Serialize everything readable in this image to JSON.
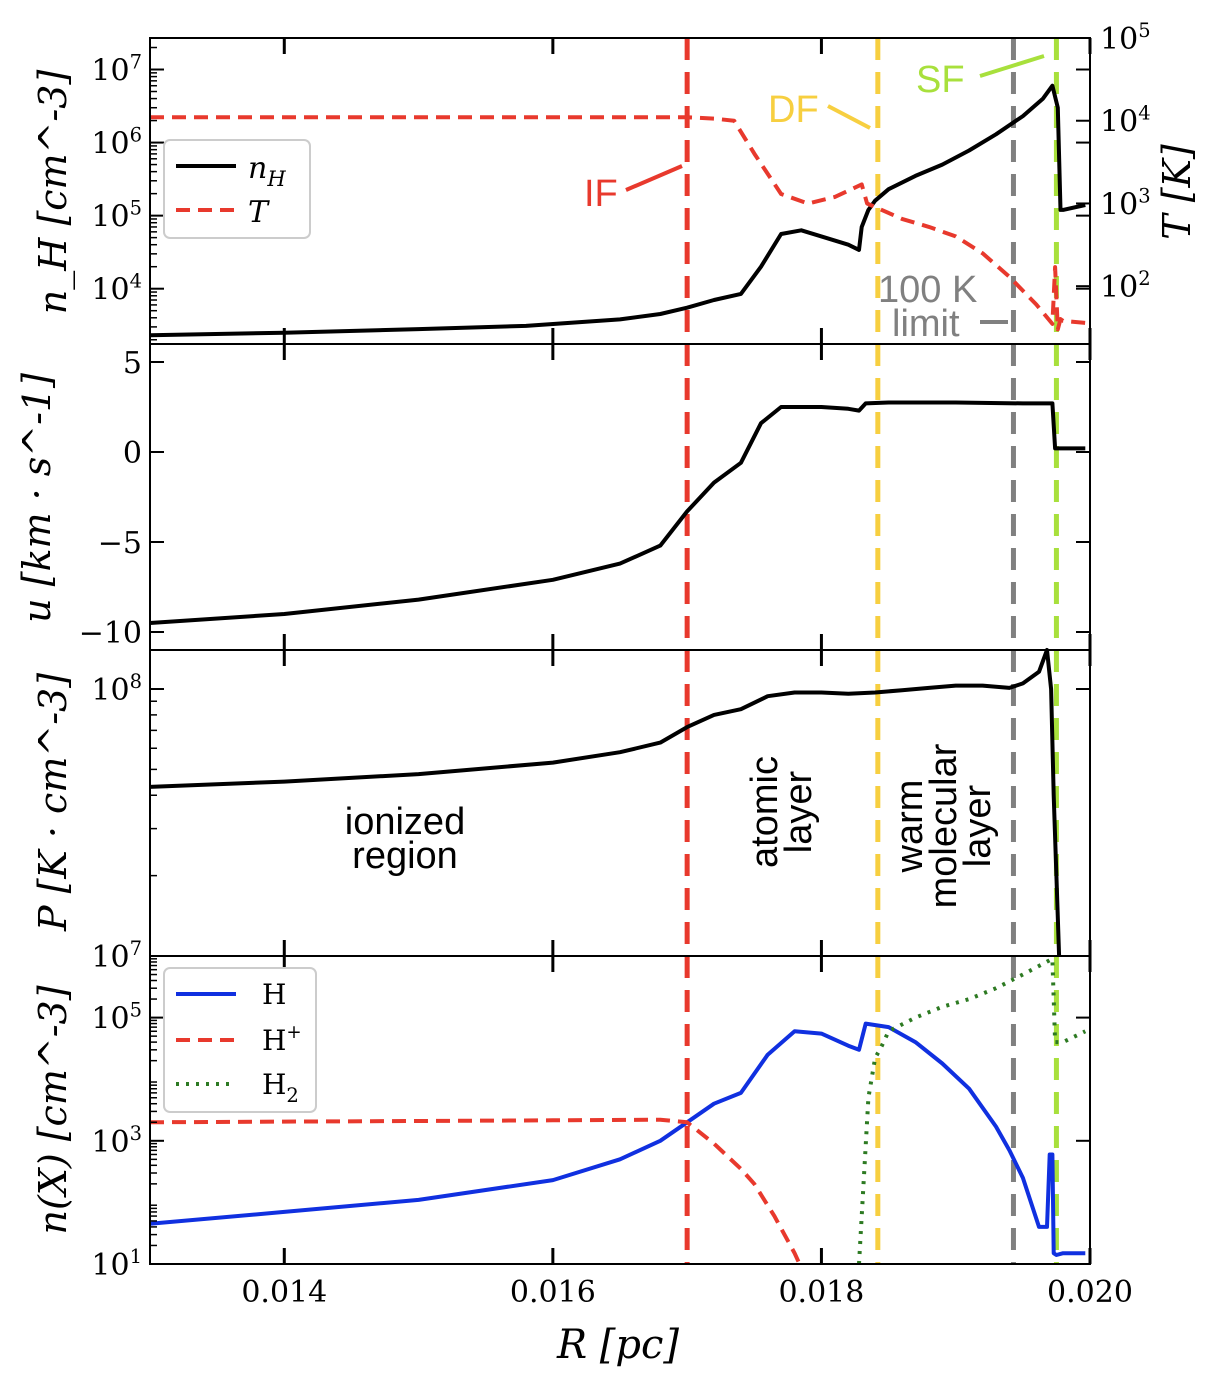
{
  "figure": {
    "title": "",
    "xlabel": "R [pc]"
  },
  "chart_data": [
    {
      "panel": "density-temperature",
      "type": "line",
      "scale": "log",
      "ylabel": "n_H [cm^-3]",
      "ylim": [
        1750,
        27000000
      ],
      "yticks": [
        {
          "v": 10000,
          "label": "10^4"
        },
        {
          "v": 100000,
          "label": "10^5"
        },
        {
          "v": 1000000,
          "label": "10^6"
        },
        {
          "v": 10000000,
          "label": "10^7"
        }
      ],
      "y2label": "T [K]",
      "y2lim": [
        20,
        100000
      ],
      "y2ticks": [
        {
          "v": 100,
          "label": "10^2"
        },
        {
          "v": 1000,
          "label": "10^3"
        },
        {
          "v": 10000,
          "label": "10^4"
        },
        {
          "v": 100000,
          "label": "10^5"
        }
      ],
      "legend": {
        "placement": "upper-left",
        "entries": [
          {
            "label": "n_H",
            "style": "solid",
            "color": "#000000"
          },
          {
            "label": "T",
            "style": "dashed",
            "color": "#e8392d"
          }
        ]
      },
      "series": [
        {
          "name": "n_H",
          "axis": "left",
          "style": "solid",
          "color": "#000000",
          "x": [
            0.013,
            0.014,
            0.015,
            0.0158,
            0.0165,
            0.0168,
            0.017,
            0.0172,
            0.0174,
            0.01755,
            0.0177,
            0.01785,
            0.018,
            0.0182,
            0.01828,
            0.0183,
            0.01835,
            0.0184,
            0.0185,
            0.0187,
            0.0189,
            0.0191,
            0.0193,
            0.0195,
            0.01965,
            0.01972,
            0.01976,
            0.01978,
            0.0198,
            0.019965
          ],
          "y": [
            2300,
            2500,
            2800,
            3100,
            3800,
            4500,
            5500,
            7000,
            8500,
            20000,
            56000,
            63000,
            52000,
            40000,
            34000,
            70000,
            120000,
            160000,
            230000,
            350000,
            500000,
            780000,
            1300000,
            2300000,
            4000000,
            6000000,
            3000000,
            120000,
            120000,
            140000
          ]
        },
        {
          "name": "T",
          "axis": "right",
          "style": "dashed",
          "color": "#e8392d",
          "x": [
            0.013,
            0.014,
            0.015,
            0.016,
            0.0168,
            0.017,
            0.0172,
            0.01735,
            0.0175,
            0.0177,
            0.0179,
            0.0181,
            0.0183,
            0.01834,
            0.0186,
            0.0188,
            0.019,
            0.0192,
            0.0194,
            0.0196,
            0.01972,
            0.01974,
            0.01976,
            0.01978,
            0.0198,
            0.019965
          ],
          "y": [
            11000,
            11000,
            11000,
            11000,
            11000,
            11000,
            10600,
            10000,
            4000,
            1300,
            1000,
            1200,
            1700,
            1000,
            650,
            520,
            400,
            250,
            130,
            60,
            35,
            170,
            30,
            40,
            38,
            36
          ]
        }
      ]
    },
    {
      "panel": "velocity",
      "type": "line",
      "scale": "linear",
      "ylabel": "u [km · s^-1]",
      "ylim": [
        -11,
        6
      ],
      "yticks": [
        {
          "v": -10,
          "label": "−10"
        },
        {
          "v": -5,
          "label": "−5"
        },
        {
          "v": 0,
          "label": "0"
        },
        {
          "v": 5,
          "label": "5"
        }
      ],
      "series": [
        {
          "name": "u",
          "style": "solid",
          "color": "#000000",
          "x": [
            0.013,
            0.014,
            0.015,
            0.016,
            0.0165,
            0.0168,
            0.017,
            0.0172,
            0.0174,
            0.01755,
            0.0177,
            0.018,
            0.0182,
            0.01828,
            0.01833,
            0.0185,
            0.019,
            0.0195,
            0.01972,
            0.01974,
            0.019965
          ],
          "y": [
            -9.5,
            -9,
            -8.2,
            -7.1,
            -6.2,
            -5.2,
            -3.3,
            -1.7,
            -0.6,
            1.6,
            2.5,
            2.5,
            2.4,
            2.3,
            2.7,
            2.75,
            2.75,
            2.7,
            2.7,
            0.2,
            0.2
          ]
        }
      ]
    },
    {
      "panel": "pressure",
      "type": "line",
      "scale": "log",
      "ylabel": "P [K · cm^-3]",
      "ylim": [
        10000000,
        140000000
      ],
      "yticks": [
        {
          "v": 10000000,
          "label": "10^7"
        },
        {
          "v": 100000000,
          "label": "10^8"
        }
      ],
      "series": [
        {
          "name": "P",
          "style": "solid",
          "color": "#000000",
          "x": [
            0.013,
            0.014,
            0.015,
            0.016,
            0.0165,
            0.0168,
            0.017,
            0.0172,
            0.0174,
            0.0176,
            0.0178,
            0.018,
            0.0182,
            0.0184,
            0.0186,
            0.0188,
            0.019,
            0.0192,
            0.0194,
            0.0195,
            0.01962,
            0.01968,
            0.01971,
            0.01973,
            0.01975,
            0.01977
          ],
          "y": [
            43000000,
            45000000,
            48000000,
            53000000,
            58000000,
            63000000,
            72000000,
            80000000,
            84000000,
            94000000,
            97000000,
            97000000,
            96000000,
            97000000,
            99000000,
            101000000,
            103000000,
            103000000,
            101000000,
            105000000,
            116000000,
            140000000,
            100000000,
            40000000,
            20000000,
            10000000
          ]
        }
      ]
    },
    {
      "panel": "species",
      "type": "line",
      "scale": "log",
      "ylabel": "n(X) [cm^-3]",
      "ylim": [
        10,
        1000000
      ],
      "yticks": [
        {
          "v": 10,
          "label": "10^1"
        },
        {
          "v": 1000,
          "label": "10^3"
        },
        {
          "v": 100000,
          "label": "10^5"
        }
      ],
      "legend": {
        "placement": "upper-left",
        "entries": [
          {
            "label": "H",
            "style": "solid",
            "color": "#1030e0"
          },
          {
            "label": "H^+",
            "style": "dashed",
            "color": "#e8392d"
          },
          {
            "label": "H_2",
            "style": "dotted",
            "color": "#2d7a22"
          }
        ]
      },
      "series": [
        {
          "name": "H",
          "style": "solid",
          "color": "#1030e0",
          "x": [
            0.013,
            0.014,
            0.015,
            0.016,
            0.0165,
            0.0168,
            0.017,
            0.0172,
            0.0174,
            0.0176,
            0.0178,
            0.018,
            0.0182,
            0.01828,
            0.01833,
            0.0185,
            0.0187,
            0.0189,
            0.0191,
            0.0193,
            0.0194,
            0.0195,
            0.01962,
            0.01968,
            0.0197,
            0.01972,
            0.01973,
            0.01975,
            0.0198,
            0.019965
          ],
          "y": [
            45,
            70,
            110,
            230,
            500,
            1000,
            2000,
            4000,
            6000,
            25000,
            60000,
            55000,
            35000,
            30000,
            80000,
            70000,
            40000,
            18000,
            7000,
            1700,
            700,
            250,
            40,
            40,
            600,
            600,
            15,
            14,
            15,
            15
          ]
        },
        {
          "name": "H^+",
          "style": "dashed",
          "color": "#e8392d",
          "x": [
            0.013,
            0.014,
            0.015,
            0.016,
            0.0168,
            0.017,
            0.0172,
            0.0174,
            0.0175,
            0.01765,
            0.0178,
            0.0179
          ],
          "y": [
            2000,
            2050,
            2100,
            2150,
            2200,
            2000,
            900,
            350,
            200,
            60,
            15,
            5
          ]
        },
        {
          "name": "H_2",
          "style": "dotted",
          "color": "#2d7a22",
          "x": [
            0.01828,
            0.01835,
            0.0184,
            0.01845,
            0.0185,
            0.0187,
            0.0189,
            0.0191,
            0.0193,
            0.0195,
            0.01972,
            0.01974,
            0.01978,
            0.0198,
            0.019965
          ],
          "y": [
            10,
            5000,
            22000,
            35000,
            60000,
            100000,
            150000,
            200000,
            300000,
            500000,
            900000,
            40000,
            40000,
            40000,
            60000
          ]
        }
      ]
    }
  ],
  "x_axis": {
    "range": [
      0.013,
      0.02
    ],
    "ticks": [
      {
        "v": 0.014,
        "label": "0.014"
      },
      {
        "v": 0.016,
        "label": "0.016"
      },
      {
        "v": 0.018,
        "label": "0.018"
      },
      {
        "v": 0.02,
        "label": "0.020"
      }
    ]
  },
  "fronts": [
    {
      "name": "IF",
      "x": 0.017,
      "color": "#e8392d",
      "label": "IF"
    },
    {
      "name": "DF",
      "x": 0.01842,
      "color": "#f7cf40",
      "label": "DF"
    },
    {
      "name": "100K",
      "x": 0.01943,
      "color": "#808080",
      "label_line1": "100 K",
      "label_line2": "limit"
    },
    {
      "name": "SF",
      "x": 0.01975,
      "color": "#a8e03c",
      "label": "SF"
    }
  ],
  "regions": [
    {
      "label_line1": "ionized",
      "label_line2": "region"
    },
    {
      "label_line1": "atomic",
      "label_line2": "layer"
    },
    {
      "label_line1": "warm",
      "label_line2": "molecular",
      "label_line3": "layer"
    }
  ]
}
